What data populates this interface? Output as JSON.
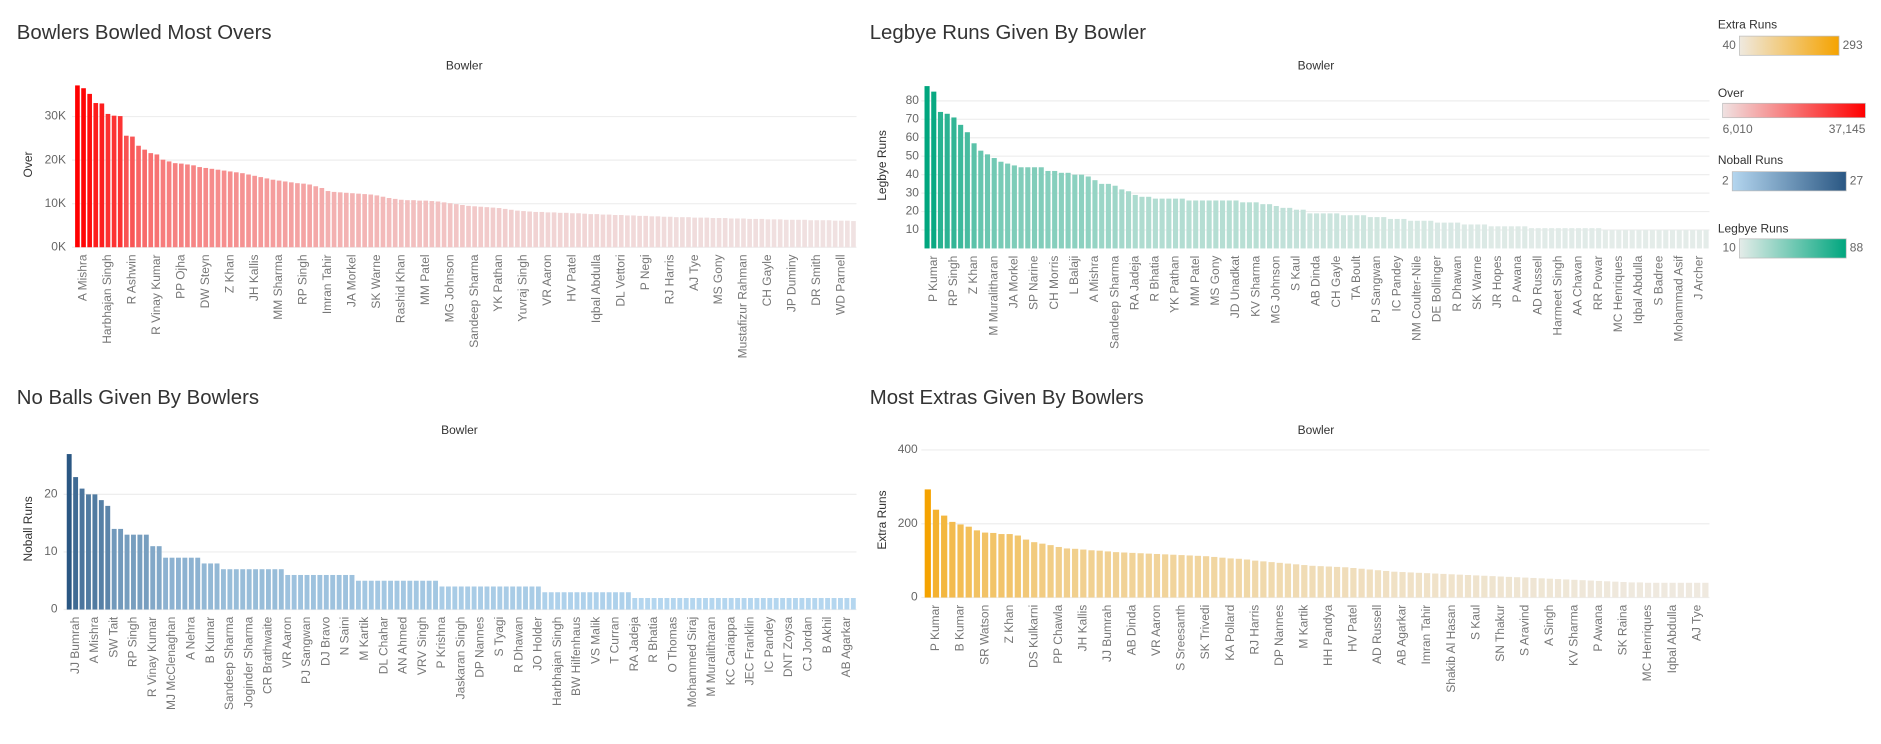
{
  "chart_data": [
    {
      "type": "bar",
      "title": "Bowlers Bowled Most Overs",
      "x_label": "Bowler",
      "y_label": "Over",
      "categories": [
        null,
        "A Mishra",
        null,
        null,
        null,
        "Harbhajan Singh",
        null,
        null,
        null,
        "R Ashwin",
        null,
        null,
        null,
        "R Vinay Kumar",
        null,
        null,
        null,
        "PP Ojha",
        null,
        null,
        null,
        "DW Steyn",
        null,
        null,
        null,
        "Z Khan",
        null,
        null,
        null,
        "JH Kallis",
        null,
        null,
        null,
        "MM Sharma",
        null,
        null,
        null,
        "RP Singh",
        null,
        null,
        null,
        "Imran Tahir",
        null,
        null,
        null,
        "JA Morkel",
        null,
        null,
        null,
        "SK Warne",
        null,
        null,
        null,
        "Rashid Khan",
        null,
        null,
        null,
        "MM Patel",
        null,
        null,
        null,
        "MG Johnson",
        null,
        null,
        null,
        "Sandeep Sharma",
        null,
        null,
        null,
        "YK Pathan",
        null,
        null,
        null,
        "Yuvraj Singh",
        null,
        null,
        null,
        "VR Aaron",
        null,
        null,
        null,
        "HV Patel",
        null,
        null,
        null,
        "Iqbal Abdulla",
        null,
        null,
        null,
        "DL Vettori",
        null,
        null,
        null,
        "P Negi",
        null,
        null,
        null,
        "RJ Harris",
        null,
        null,
        null,
        "AJ Tye",
        null,
        null,
        null,
        "MS Gony",
        null,
        null,
        null,
        "Mustafizur Rahman",
        null,
        null,
        null,
        "CH Gayle",
        null,
        null,
        null,
        "JP Duminy",
        null,
        null,
        null,
        "DR Smith",
        null,
        null,
        null,
        "WD Parnell",
        null,
        null
      ],
      "values": [
        37145,
        36500,
        35200,
        33100,
        33000,
        30600,
        30200,
        30100,
        25600,
        25400,
        23300,
        22400,
        21600,
        21300,
        20100,
        19700,
        19300,
        19200,
        19000,
        18800,
        18400,
        18200,
        18000,
        17800,
        17600,
        17400,
        17200,
        17000,
        16700,
        16400,
        16100,
        15800,
        15500,
        15300,
        15100,
        14900,
        14700,
        14600,
        14400,
        14000,
        13600,
        12900,
        12700,
        12600,
        12500,
        12400,
        12300,
        12200,
        12100,
        11900,
        11600,
        11300,
        11100,
        10900,
        10800,
        10800,
        10700,
        10700,
        10600,
        10500,
        10300,
        10100,
        9900,
        9700,
        9500,
        9400,
        9300,
        9200,
        9100,
        9000,
        8800,
        8600,
        8400,
        8300,
        8200,
        8100,
        8100,
        8000,
        8000,
        7900,
        7900,
        7800,
        7800,
        7700,
        7600,
        7600,
        7500,
        7500,
        7400,
        7400,
        7300,
        7300,
        7200,
        7200,
        7100,
        7100,
        7000,
        7000,
        6900,
        6900,
        6900,
        6800,
        6800,
        6800,
        6700,
        6700,
        6700,
        6600,
        6600,
        6600,
        6500,
        6500,
        6500,
        6400,
        6400,
        6400,
        6300,
        6300,
        6300,
        6300,
        6200,
        6200,
        6200,
        6200,
        6100,
        6100,
        6100,
        6010
      ],
      "ylim": [
        0,
        38000
      ],
      "yticks": [
        {
          "value": 0,
          "label": "0K"
        },
        {
          "value": 10000,
          "label": "10K"
        },
        {
          "value": 20000,
          "label": "20K"
        },
        {
          "value": 30000,
          "label": "30K"
        }
      ],
      "grid": true,
      "color_low": "#f0e2e2",
      "color_high": "#ff0000",
      "legend": {
        "title": "Over",
        "min": {
          "value": 6010,
          "label": "6,010"
        },
        "max": {
          "value": 37145,
          "label": "37,145"
        }
      }
    },
    {
      "type": "bar",
      "title": "Legbye Runs Given By Bowler",
      "x_label": "Bowler",
      "y_label": "Legbye Runs",
      "categories": [
        null,
        "P Kumar",
        null,
        null,
        "RP Singh",
        null,
        null,
        "Z Khan",
        null,
        null,
        "M Muralitharan",
        null,
        null,
        "JA Morkel",
        null,
        null,
        "SP Narine",
        null,
        null,
        "CH Morris",
        null,
        null,
        "L Balaji",
        null,
        null,
        "A Mishra",
        null,
        null,
        "Sandeep Sharma",
        null,
        null,
        "RA Jadeja",
        null,
        null,
        "R Bhatia",
        null,
        null,
        "YK Pathan",
        null,
        null,
        "MM Patel",
        null,
        null,
        "MS Gony",
        null,
        null,
        "JD Unadkat",
        null,
        null,
        "KV Sharma",
        null,
        null,
        "MG Johnson",
        null,
        null,
        "S Kaul",
        null,
        null,
        "AB Dinda",
        null,
        null,
        "CH Gayle",
        null,
        null,
        "TA Boult",
        null,
        null,
        "PJ Sangwan",
        null,
        null,
        "IC Pandey",
        null,
        null,
        "NM Coulter-Nile",
        null,
        null,
        "DE Bollinger",
        null,
        null,
        "R Dhawan",
        null,
        null,
        "SK Warne",
        null,
        null,
        "JR Hopes",
        null,
        null,
        "P Awana",
        null,
        null,
        "AD Russell",
        null,
        null,
        "Harmeet Singh",
        null,
        null,
        "AA Chavan",
        null,
        null,
        "RR Powar",
        null,
        null,
        "MC Henriques",
        null,
        null,
        "Iqbal Abdulla",
        null,
        null,
        "S Badree",
        null,
        null,
        "Mohammad Asif",
        null,
        null,
        "J Archer",
        null
      ],
      "values": [
        88,
        85,
        74,
        73,
        71,
        67,
        63,
        57,
        53,
        51,
        49,
        47,
        46,
        45,
        44,
        44,
        44,
        44,
        42,
        42,
        41,
        41,
        40,
        40,
        39,
        37,
        35,
        35,
        34,
        32,
        31,
        29,
        28,
        28,
        27,
        27,
        27,
        27,
        27,
        26,
        26,
        26,
        26,
        26,
        26,
        26,
        26,
        25,
        25,
        25,
        24,
        24,
        23,
        22,
        22,
        21,
        21,
        19,
        19,
        19,
        19,
        19,
        18,
        18,
        18,
        18,
        17,
        17,
        17,
        16,
        16,
        16,
        15,
        15,
        15,
        15,
        14,
        14,
        14,
        14,
        13,
        13,
        13,
        13,
        12,
        12,
        12,
        12,
        12,
        12,
        11,
        11,
        11,
        11,
        11,
        11,
        11,
        11,
        11,
        11,
        11,
        10,
        10,
        10,
        10,
        10,
        10,
        10,
        10,
        10,
        10,
        10,
        10,
        10,
        10,
        10,
        10
      ],
      "ylim": [
        0,
        90
      ],
      "yticks": [
        10,
        20,
        30,
        40,
        50,
        60,
        70,
        80
      ],
      "grid": true,
      "color_low": "#e4ece9",
      "color_high": "#00a67e",
      "legend": {
        "title": "Legbye Runs",
        "min": 10,
        "max": 88
      }
    },
    {
      "type": "bar",
      "title": "No Balls Given By Bowlers",
      "x_label": "Bowler",
      "y_label": "Noball Runs",
      "categories": [
        null,
        "JJ Bumrah",
        null,
        null,
        "A Mishra",
        null,
        null,
        "SW Tait",
        null,
        null,
        "RP Singh",
        null,
        null,
        "R Vinay Kumar",
        null,
        null,
        "MJ McClenaghan",
        null,
        null,
        "A Nehra",
        null,
        null,
        "B Kumar",
        null,
        null,
        "Sandeep Sharma",
        null,
        null,
        "Joginder Sharma",
        null,
        null,
        "CR Brathwaite",
        null,
        null,
        "VR Aaron",
        null,
        null,
        "PJ Sangwan",
        null,
        null,
        "DJ Bravo",
        null,
        null,
        "N Saini",
        null,
        null,
        "M Kartik",
        null,
        null,
        "DL Chahar",
        null,
        null,
        "AN Ahmed",
        null,
        null,
        "VRV Singh",
        null,
        null,
        "P Krishna",
        null,
        null,
        "Jaskaran Singh",
        null,
        null,
        "DP Nannes",
        null,
        null,
        "S Tyagi",
        null,
        null,
        "R Dhawan",
        null,
        null,
        "JO Holder",
        null,
        null,
        "Harbhajan Singh",
        null,
        null,
        "BW Hilfenhaus",
        null,
        null,
        "VS Malik",
        null,
        null,
        "T Curran",
        null,
        null,
        "RA Jadeja",
        null,
        null,
        "R Bhatia",
        null,
        null,
        "O Thomas",
        null,
        null,
        "Mohammed Siraj",
        null,
        null,
        "M Muralitharan",
        null,
        null,
        "KC Cariappa",
        null,
        null,
        "JEC Franklin",
        null,
        null,
        "IC Pandey",
        null,
        null,
        "DNT Zoysa",
        null,
        null,
        "CJ Jordan",
        null,
        null,
        "B Akhil",
        null,
        null,
        "AB Agarkar",
        null
      ],
      "values": [
        27,
        23,
        21,
        20,
        20,
        19,
        18,
        14,
        14,
        13,
        13,
        13,
        13,
        11,
        11,
        9,
        9,
        9,
        9,
        9,
        9,
        8,
        8,
        8,
        7,
        7,
        7,
        7,
        7,
        7,
        7,
        7,
        7,
        7,
        6,
        6,
        6,
        6,
        6,
        6,
        6,
        6,
        6,
        6,
        6,
        5,
        5,
        5,
        5,
        5,
        5,
        5,
        5,
        5,
        5,
        5,
        5,
        5,
        4,
        4,
        4,
        4,
        4,
        4,
        4,
        4,
        4,
        4,
        4,
        4,
        4,
        4,
        4,
        4,
        3,
        3,
        3,
        3,
        3,
        3,
        3,
        3,
        3,
        3,
        3,
        3,
        3,
        3,
        2,
        2,
        2,
        2,
        2,
        2,
        2,
        2,
        2,
        2,
        2,
        2,
        2,
        2,
        2,
        2,
        2,
        2,
        2,
        2,
        2,
        2,
        2,
        2,
        2,
        2,
        2,
        2,
        2,
        2,
        2,
        2,
        2,
        2,
        2
      ],
      "ylim": [
        0,
        28
      ],
      "yticks": [
        0,
        10,
        20
      ],
      "grid": true,
      "color_low": "#b4d6ef",
      "color_high": "#2a5783",
      "legend": {
        "title": "Noball Runs",
        "min": 2,
        "max": 27
      }
    },
    {
      "type": "bar",
      "title": "Most Extras Given By Bowlers",
      "x_label": "Bowler",
      "y_label": "Extra Runs",
      "categories": [
        null,
        "P Kumar",
        null,
        null,
        "B Kumar",
        null,
        null,
        "SR Watson",
        null,
        null,
        "Z Khan",
        null,
        null,
        "DS Kulkarni",
        null,
        null,
        "PP Chawla",
        null,
        null,
        "JH Kallis",
        null,
        null,
        "JJ Bumrah",
        null,
        null,
        "AB Dinda",
        null,
        null,
        "VR Aaron",
        null,
        null,
        "S Sreesanth",
        null,
        null,
        "SK Trivedi",
        null,
        null,
        "KA Pollard",
        null,
        null,
        "RJ Harris",
        null,
        null,
        "DP Nannes",
        null,
        null,
        "M Kartik",
        null,
        null,
        "HH Pandya",
        null,
        null,
        "HV Patel",
        null,
        null,
        "AD Russell",
        null,
        null,
        "AB Agarkar",
        null,
        null,
        "Imran Tahir",
        null,
        null,
        "Shakib Al Hasan",
        null,
        null,
        "S Kaul",
        null,
        null,
        "SN Thakur",
        null,
        null,
        "S Aravind",
        null,
        null,
        "A Singh",
        null,
        null,
        "KV Sharma",
        null,
        null,
        "P Awana",
        null,
        null,
        "SK Raina",
        null,
        null,
        "MC Henriques",
        null,
        null,
        "Iqbal Abdulla",
        null,
        null,
        "AJ Tye",
        null
      ],
      "values": [
        293,
        238,
        222,
        205,
        198,
        192,
        182,
        176,
        175,
        172,
        172,
        168,
        157,
        150,
        146,
        142,
        137,
        133,
        132,
        130,
        128,
        127,
        125,
        123,
        122,
        121,
        120,
        119,
        118,
        117,
        116,
        115,
        114,
        113,
        112,
        110,
        108,
        106,
        105,
        103,
        100,
        98,
        96,
        94,
        92,
        90,
        88,
        86,
        85,
        84,
        83,
        82,
        80,
        78,
        76,
        74,
        72,
        70,
        69,
        68,
        67,
        66,
        65,
        64,
        63,
        62,
        61,
        60,
        59,
        58,
        57,
        56,
        55,
        54,
        53,
        52,
        51,
        50,
        49,
        48,
        47,
        46,
        45,
        44,
        43,
        42,
        41,
        41,
        40,
        40,
        40,
        40,
        40,
        40,
        40,
        40
      ],
      "ylim": [
        0,
        420
      ],
      "yticks": [
        0,
        200,
        400
      ],
      "grid": true,
      "color_low": "#efe9df",
      "color_high": "#f5a300",
      "legend": {
        "title": "Extra Runs",
        "min": 40,
        "max": 293
      }
    }
  ]
}
